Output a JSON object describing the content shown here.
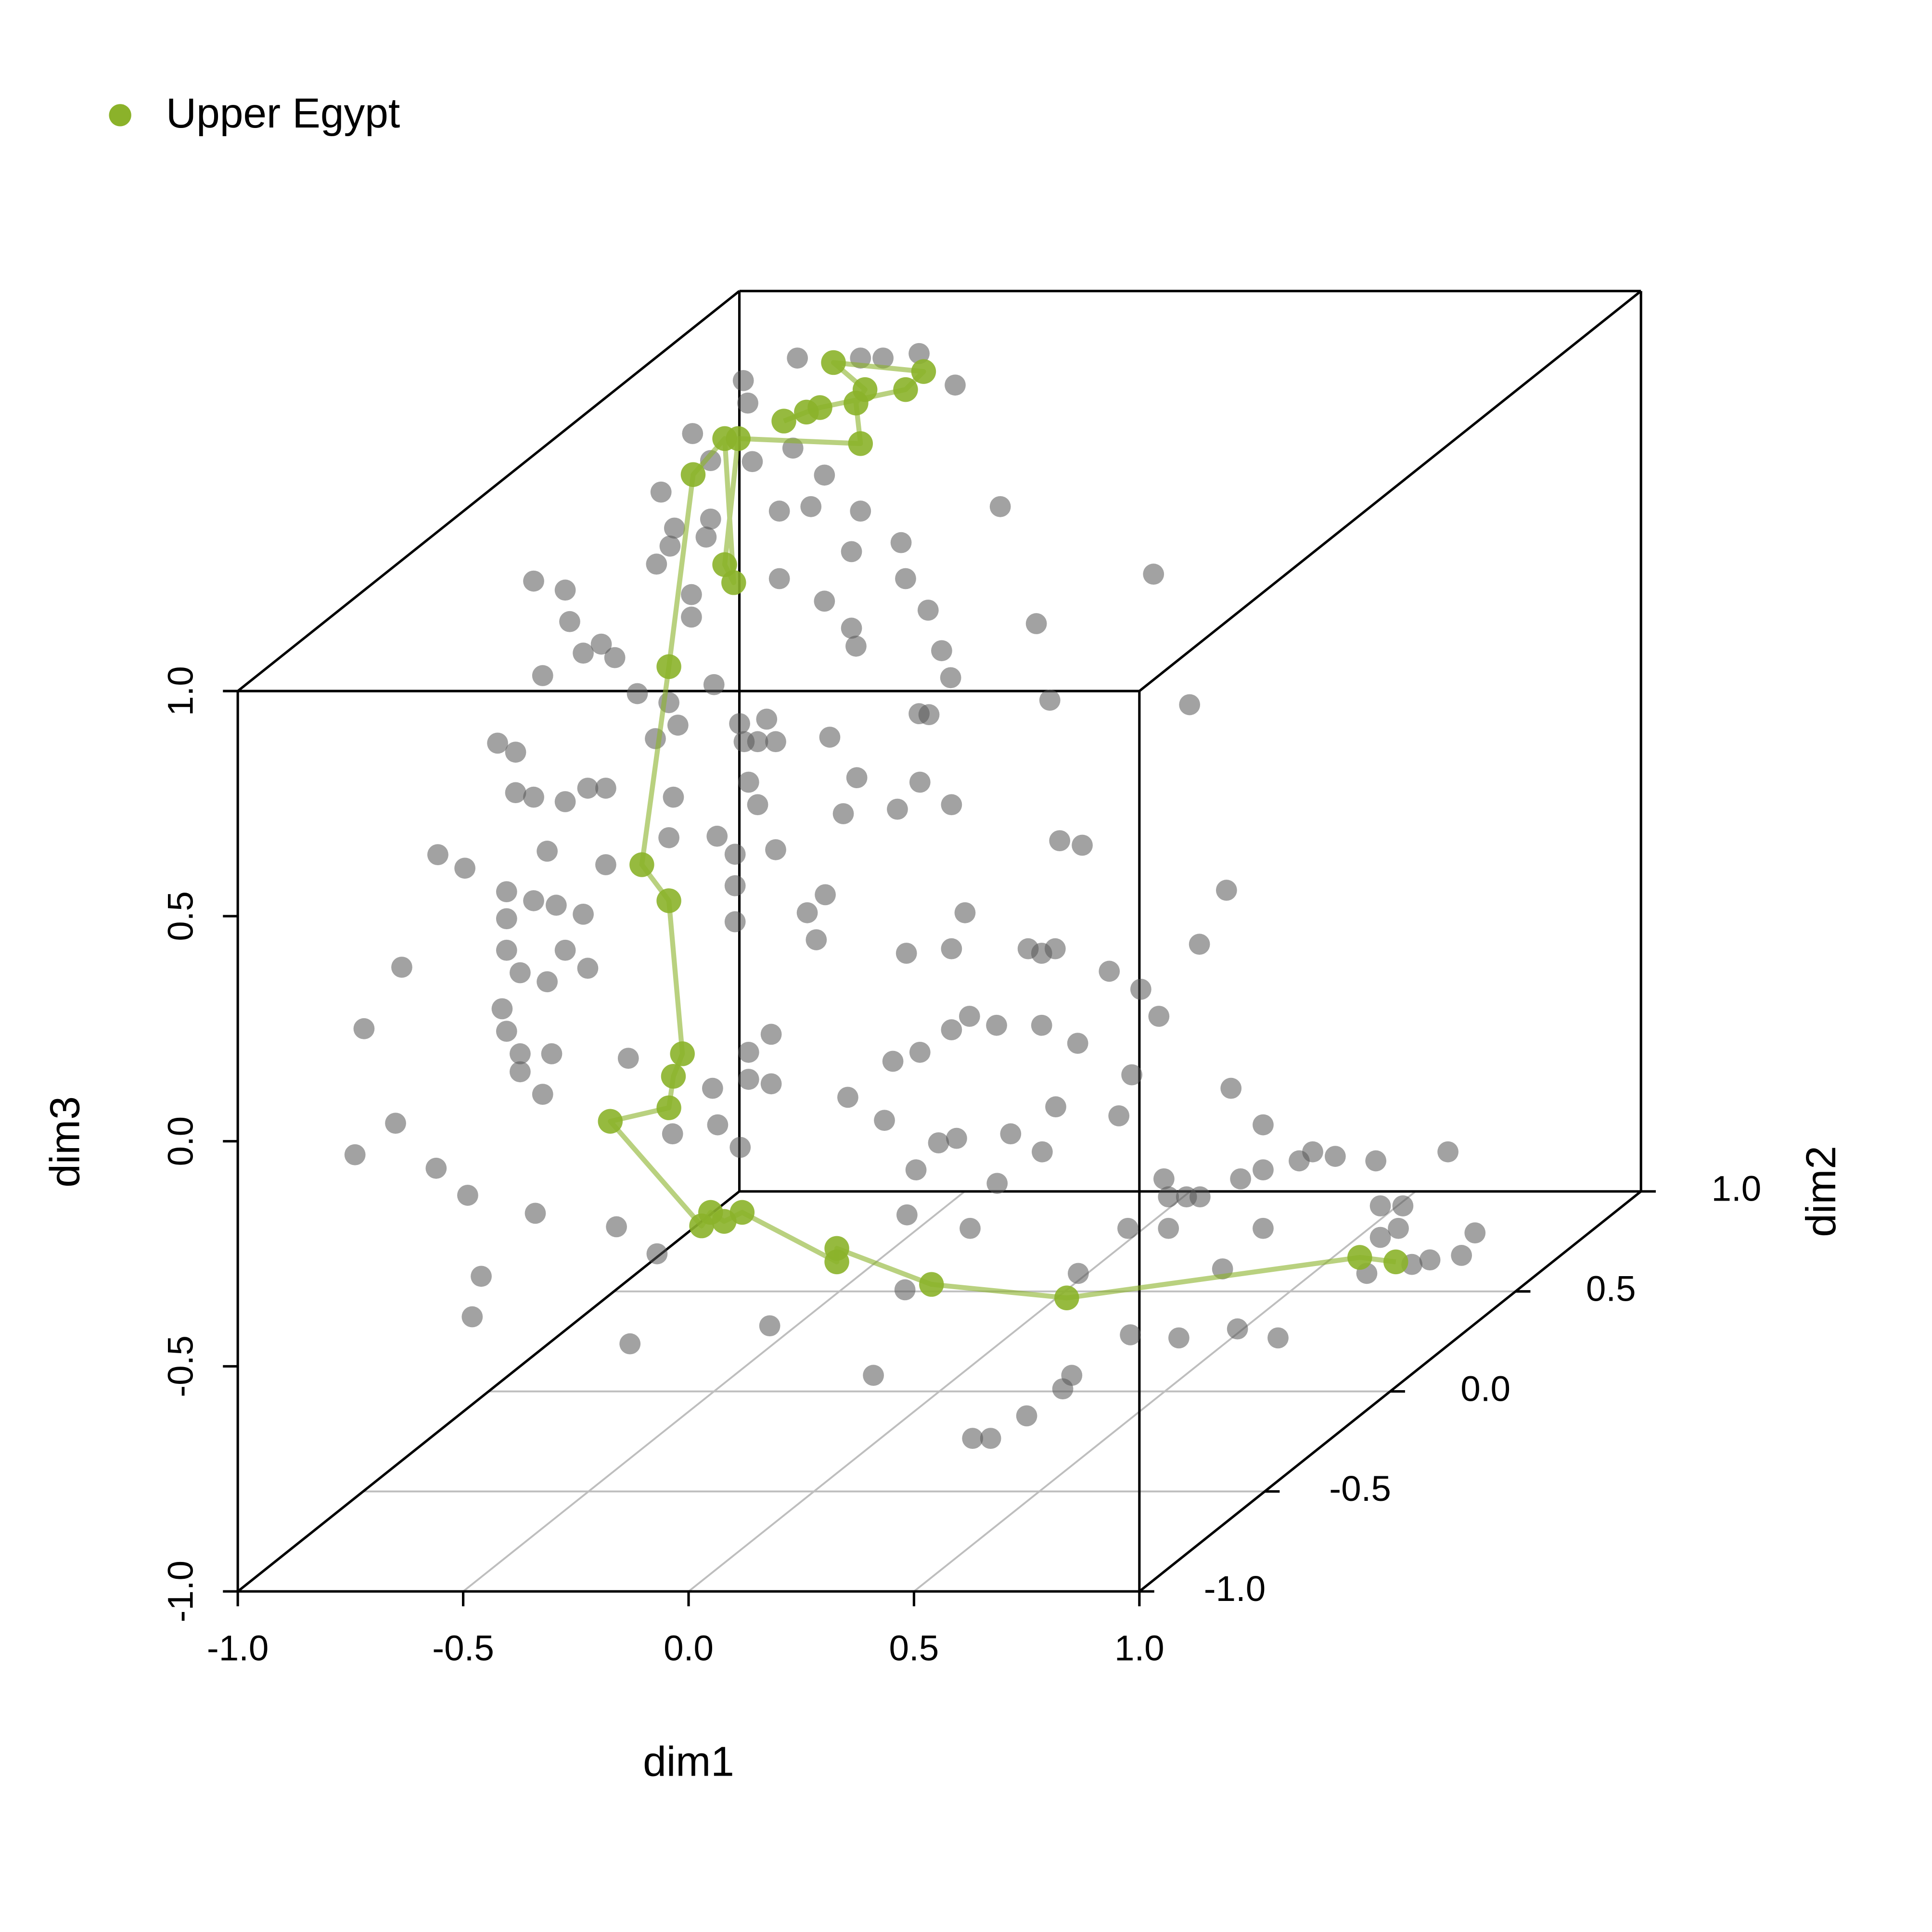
{
  "chart_data": {
    "type": "scatter3d",
    "x_label": "dim1",
    "y_label": "dim2",
    "z_label": "dim3",
    "legend": "top-left",
    "xlim": [
      -1,
      1
    ],
    "ylim": [
      -1,
      1
    ],
    "zlim": [
      -1,
      1
    ],
    "xticks": [
      {
        "value": -1,
        "label": "-1.0"
      },
      -0.5,
      {
        "value": 0,
        "label": "0.0"
      },
      0.5,
      {
        "value": 1,
        "label": "1.0"
      }
    ],
    "yticks": [
      {
        "value": -1,
        "label": "-1.0"
      },
      -0.5,
      {
        "value": 0,
        "label": "0.0"
      },
      0.5,
      {
        "value": 1,
        "label": "1.0"
      }
    ],
    "zticks": [
      {
        "value": -1,
        "label": "-1.0"
      },
      -0.5,
      {
        "value": 0,
        "label": "0.0"
      },
      0.5,
      {
        "value": 1,
        "label": "1.0"
      }
    ],
    "grid": true,
    "series": [
      {
        "name": "Upper Egypt",
        "color": "#8bb22a",
        "line": true,
        "x": [
          0.79,
          0.71,
          0.06,
          -0.24,
          -0.45,
          -0.45,
          -0.66,
          -0.7,
          -0.73,
          -0.75,
          -0.73,
          -0.6,
          -0.59,
          -0.57,
          -0.6,
          -0.66,
          -0.6,
          -0.88,
          -0.81,
          -0.79,
          -0.81,
          -0.78,
          -0.62,
          -0.63,
          -0.61,
          -0.68,
          -0.48,
          -0.52,
          -0.71,
          -0.74,
          -0.79
        ],
        "y": [
          0.4,
          0.4,
          0.4,
          0.4,
          0.4,
          0.4,
          0.4,
          0.4,
          0.4,
          0.4,
          0,
          0,
          0,
          0,
          0,
          0,
          0,
          0.6,
          0.6,
          0.6,
          0.6,
          0.6,
          0.8,
          0.8,
          0.8,
          0.8,
          0.8,
          0.8,
          0.8,
          0.8,
          0.8
        ],
        "z": [
          -0.89,
          -0.88,
          -0.97,
          -0.94,
          -0.86,
          -0.89,
          -0.78,
          -0.8,
          -0.78,
          -0.81,
          -0.4,
          -0.37,
          -0.3,
          -0.25,
          0.09,
          0.17,
          0.61,
          0.77,
          0.85,
          0.53,
          0.57,
          0.85,
          0.75,
          0.84,
          0.87,
          0.93,
          0.91,
          0.87,
          0.83,
          0.82,
          0.8
        ]
      },
      {
        "color": "#555555",
        "line": false,
        "x": [
          -0.88,
          -0.76,
          -0.62,
          -0.57,
          -0.49,
          -0.41,
          -0.87,
          -0.86,
          -0.77,
          -0.7,
          -0.8,
          -0.73,
          -0.62,
          -0.64,
          -0.53,
          -0.52,
          -0.47,
          -0.31,
          0.03,
          -0.23,
          -0.8,
          -0.7,
          -0.64,
          -0.63,
          -0.44,
          -0.42,
          -0.49,
          -0.2,
          0.11,
          -0.84,
          -0.77,
          -0.73,
          -0.81,
          -0.73,
          -0.74,
          -0.85,
          -0.82,
          -0.9,
          -0.83,
          -0.82,
          -0.75,
          -0.79,
          -0.88,
          -0.72,
          -0.67,
          -0.55,
          -0.55,
          -0.5,
          -0.6,
          -0.63,
          -0.58,
          -0.98,
          -0.94,
          -0.94,
          -0.9,
          -0.83,
          -0.78,
          -0.74,
          -0.59,
          -0.96,
          -0.87,
          -0.74,
          -0.85,
          -0.9,
          -0.79,
          -0.96,
          -0.96,
          -0.83,
          -0.78,
          -0.93,
          -0.87,
          -0.97,
          -0.96,
          -0.93,
          -0.86,
          -0.93,
          -0.88,
          -0.69,
          -0.6,
          -0.89,
          -0.83,
          -0.97,
          -0.72,
          -0.65,
          -0.74,
          -0.56,
          -0.49,
          -0.34,
          -0.46,
          -0.48,
          -0.16,
          -0.13,
          -0.07,
          0.18,
          0.41,
          0.63,
          0.67,
          0.75,
          0.83,
          0.85,
          0.48,
          0.98,
          -0.61,
          -0.55,
          -0.6,
          -0.57,
          -0.53,
          -0.41,
          -0.19,
          -0.35,
          -0.21,
          -0.14,
          -0.26,
          -0.38,
          -0.59,
          -0.57,
          -0.66,
          -0.62,
          -0.53,
          -0.62,
          -0.42,
          -0.62,
          -0.46,
          -0.44,
          -0.11,
          -0.14,
          -0.24,
          0.1,
          0.15,
          0.47,
          0.41,
          0.03,
          0.09,
          0.06,
          0.21,
          0.28,
          0.32,
          -0.1,
          -0.04,
          -0.14,
          0.06,
          0.14,
          -0.21,
          -0.27,
          -0.54,
          -0.59,
          -0.59,
          -0.54,
          -0.67,
          -0.37,
          0.26,
          0.48,
          -0.77,
          -0.72,
          -0.87,
          -0.4,
          -0.02,
          0.12,
          -0.28,
          -0.24,
          -0.12,
          -0.05,
          -0.33,
          -0.15,
          0.44,
          0.52,
          0.55,
          0.6,
          0.69,
          0.85,
          0.22,
          0.39,
          0.44,
          0.23,
          0.27,
          0.3,
          0.75,
          0.7,
          0.23,
          0.14,
          0.44,
          0.74,
          0.91,
          0.88,
          0.7,
          0.81,
          0.77,
          0.67,
          0.35,
          0.03,
          -0.35,
          -0.21,
          0.42,
          0.55,
          0.64
        ],
        "y": [
          0.8,
          0.8,
          0.8,
          0.8,
          0.8,
          0.8,
          0.8,
          0.8,
          0.8,
          0.8,
          0.8,
          0.8,
          0.8,
          0.8,
          0.8,
          0.8,
          0.8,
          0.8,
          0.8,
          0.8,
          0.8,
          0.8,
          0.8,
          0.8,
          0.8,
          0.8,
          0.8,
          0.8,
          0.8,
          0.4,
          0.4,
          0.4,
          0.4,
          0.4,
          0.4,
          0.4,
          0.4,
          0,
          0,
          0,
          0,
          0,
          0,
          0,
          0,
          0,
          0,
          0,
          0,
          0,
          0,
          0,
          0,
          0,
          0,
          0,
          0,
          0,
          0,
          0,
          0,
          0,
          0,
          0,
          0,
          0,
          0,
          0,
          0,
          0,
          0,
          0,
          0,
          0,
          0,
          0,
          0,
          0,
          0,
          -0.4,
          -0.4,
          -0.4,
          -1,
          -1,
          -1,
          -1,
          -1,
          -1,
          -1,
          -1,
          -1,
          -1,
          -1,
          -1,
          -1,
          -1,
          -1,
          -1,
          -1,
          -1,
          -1,
          -1,
          0.3,
          0.3,
          0.3,
          0.3,
          0.3,
          0.3,
          0.3,
          0.3,
          0.3,
          0.3,
          0.3,
          0.3,
          0.3,
          0.3,
          0.3,
          0.3,
          0.3,
          0.3,
          0.3,
          0.3,
          0.3,
          0.3,
          0.3,
          0.3,
          0.3,
          0.3,
          0.3,
          0.3,
          0.3,
          0.3,
          0.3,
          0.3,
          0.3,
          0.3,
          0.3,
          0.3,
          0.3,
          0.3,
          0.3,
          0.3,
          0.3,
          0.3,
          0.3,
          0.3,
          0.3,
          0.3,
          0.3,
          0.3,
          0.3,
          0.3,
          0.5,
          0.5,
          0.5,
          0.5,
          0.5,
          0.5,
          0.5,
          0.5,
          0.5,
          0.5,
          0.5,
          0.5,
          0.5,
          0.5,
          0.5,
          0.5,
          0.5,
          0.5,
          0.5,
          0.5,
          0.5,
          0.5,
          0.5,
          0.5,
          0.5,
          0.5,
          0.5,
          0.5,
          0.5,
          0.5,
          0.5,
          0.5,
          0.5,
          0.5,
          0.5,
          0.5,
          0.5,
          0.5,
          0.5,
          0.5,
          0.2,
          0.2,
          0.2
        ],
        "z": [
          0.89,
          0.94,
          0.94,
          0.94,
          0.95,
          0.88,
          0.84,
          0.71,
          0.74,
          0.68,
          0.6,
          0.61,
          0.6,
          0.51,
          0.53,
          0.45,
          0.38,
          0.61,
          0.46,
          0.35,
          0.45,
          0.4,
          0.34,
          0.3,
          0.29,
          0.23,
          0.15,
          0.18,
          0.17,
          0.82,
          0.95,
          0.89,
          0.74,
          0.76,
          0.72,
          0.66,
          0.7,
          0.8,
          0.78,
          0.71,
          0.66,
          0.64,
          0.59,
          0.63,
          0.55,
          0.77,
          0.72,
          0.57,
          0.53,
          0.45,
          0.48,
          0.44,
          0.42,
          0.33,
          0.32,
          0.31,
          0.34,
          0.34,
          0.32,
          0.11,
          0.2,
          0.17,
          0.08,
          0.09,
          0.06,
          0.05,
          -0.02,
          -0.02,
          -0.06,
          -0.07,
          -0.09,
          -0.15,
          -0.2,
          -0.25,
          -0.25,
          -0.29,
          -0.34,
          -0.26,
          0.23,
          0.37,
          0.34,
          0.12,
          0.25,
          0.04,
          -0.03,
          -0.06,
          -0.12,
          -0.16,
          -0.3,
          -0.39,
          -0.19,
          -0.45,
          -0.25,
          -0.41,
          -0.52,
          -0.66,
          -0.66,
          -0.61,
          -0.55,
          -0.52,
          -0.33,
          -0.43,
          0.35,
          0.36,
          0.31,
          0.31,
          0.31,
          0.32,
          0.37,
          0.23,
          0.22,
          0.17,
          0.16,
          0.15,
          0.22,
          0.17,
          0.1,
          0.06,
          0.07,
          -0.01,
          -0.03,
          -0.09,
          -0.07,
          -0.13,
          -0.07,
          -0.15,
          -0.16,
          0.09,
          0.08,
          -0.02,
          -0.14,
          -0.15,
          -0.15,
          -0.16,
          -0.2,
          -0.24,
          -0.3,
          -0.3,
          -0.32,
          -0.33,
          -0.32,
          -0.36,
          -0.38,
          -0.4,
          -0.34,
          -0.38,
          -0.44,
          -0.45,
          -0.46,
          -0.48,
          -0.43,
          -0.46,
          -0.63,
          -0.68,
          -0.65,
          -0.62,
          -0.59,
          -0.61,
          -0.67,
          -0.66,
          -0.65,
          -0.69,
          -0.73,
          -0.76,
          -0.63,
          -0.71,
          -0.69,
          -0.7,
          -0.71,
          -0.69,
          -0.75,
          -0.75,
          -0.73,
          -0.79,
          -0.79,
          -0.79,
          -0.81,
          -0.81,
          -0.86,
          -0.86,
          -0.86,
          -0.86,
          -0.87,
          -0.92,
          -0.88,
          -0.93,
          -0.94,
          -0.96,
          -0.95,
          -0.96,
          -0.83,
          -0.86,
          -0.97,
          -0.95,
          -0.97
        ]
      }
    ]
  }
}
